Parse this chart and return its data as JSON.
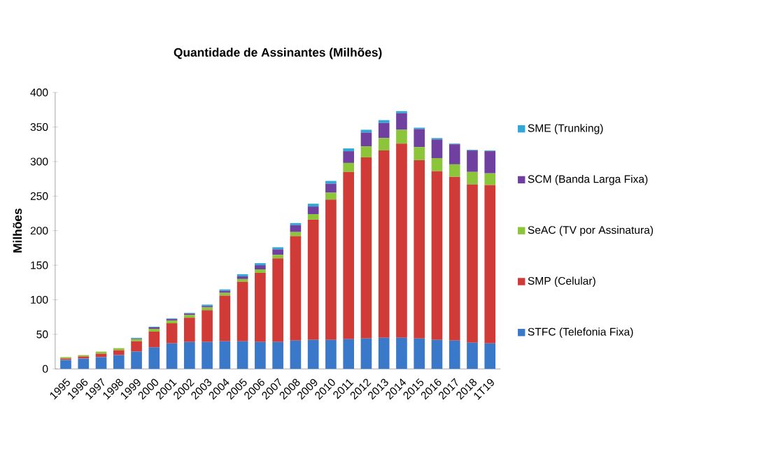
{
  "chart_data": {
    "type": "bar",
    "stacked": true,
    "title": "Quantidade de Assinantes (Milhões)",
    "ylabel": "Milhões",
    "categories": [
      "1995",
      "1996",
      "1997",
      "1998",
      "1999",
      "2000",
      "2001",
      "2002",
      "2003",
      "2004",
      "2005",
      "2006",
      "2007",
      "2008",
      "2009",
      "2010",
      "2011",
      "2012",
      "2013",
      "2014",
      "2015",
      "2016",
      "2017",
      "2018",
      "1T19"
    ],
    "series": [
      {
        "name": "STFC (Telefonia Fixa)",
        "color": "#3a78c9",
        "values": [
          13,
          15,
          17,
          20,
          25,
          31,
          37,
          39,
          39,
          40,
          40,
          39,
          39,
          41,
          42,
          42,
          43,
          44,
          45,
          45,
          44,
          42,
          41,
          38,
          37
        ]
      },
      {
        "name": "SMP (Celular)",
        "color": "#d03a37",
        "values": [
          2,
          3,
          5,
          7,
          15,
          23,
          29,
          35,
          46,
          66,
          86,
          100,
          121,
          151,
          174,
          203,
          242,
          262,
          271,
          281,
          258,
          244,
          237,
          229,
          229
        ]
      },
      {
        "name": "SeAC (TV por Assinatura)",
        "color": "#8cc43a",
        "values": [
          2,
          2,
          3,
          3,
          3,
          4,
          4,
          4,
          4,
          4,
          4,
          5,
          5,
          6,
          8,
          10,
          13,
          16,
          18,
          20,
          19,
          19,
          18,
          18,
          17
        ]
      },
      {
        "name": "SCM (Banda Larga Fixa)",
        "color": "#7040a0",
        "values": [
          0,
          0,
          0,
          0,
          1,
          2,
          2,
          2,
          2,
          3,
          4,
          6,
          8,
          10,
          11,
          13,
          17,
          20,
          22,
          24,
          26,
          27,
          29,
          31,
          32
        ]
      },
      {
        "name": "SME (Trunking)",
        "color": "#2fa8d8",
        "values": [
          0,
          0,
          0,
          0,
          1,
          1,
          1,
          1,
          2,
          2,
          3,
          3,
          3,
          3,
          4,
          4,
          4,
          4,
          4,
          3,
          2,
          2,
          1,
          1,
          1
        ]
      }
    ],
    "ylim": [
      0,
      400
    ],
    "yticks": [
      0,
      50,
      100,
      150,
      200,
      250,
      300,
      350,
      400
    ],
    "grid": false,
    "legend": "right"
  }
}
